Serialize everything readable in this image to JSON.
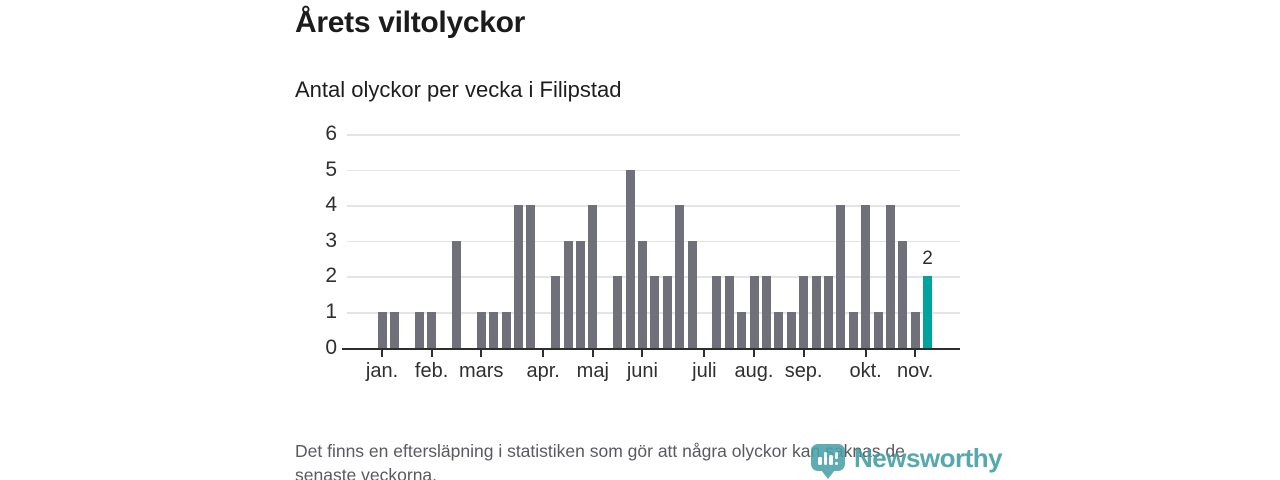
{
  "header": {
    "title": "Årets viltolyckor",
    "subtitle": "Antal olyckor per vecka i Filipstad"
  },
  "chart_data": {
    "type": "bar",
    "title": "Årets viltolyckor",
    "subtitle": "Antal olyckor per vecka i Filipstad",
    "x_unit": "vecka",
    "values": [
      1,
      1,
      0,
      1,
      1,
      0,
      3,
      0,
      1,
      1,
      1,
      4,
      4,
      0,
      2,
      3,
      3,
      4,
      0,
      2,
      5,
      3,
      2,
      2,
      4,
      3,
      0,
      2,
      2,
      1,
      2,
      2,
      1,
      1,
      2,
      2,
      2,
      4,
      1,
      4,
      1,
      4,
      3,
      1,
      2
    ],
    "months": [
      {
        "label": "jan.",
        "slot": 0
      },
      {
        "label": "feb.",
        "slot": 4
      },
      {
        "label": "mars",
        "slot": 8
      },
      {
        "label": "apr.",
        "slot": 13
      },
      {
        "label": "maj",
        "slot": 17
      },
      {
        "label": "juni",
        "slot": 21
      },
      {
        "label": "juli",
        "slot": 26
      },
      {
        "label": "aug.",
        "slot": 30
      },
      {
        "label": "sep.",
        "slot": 34
      },
      {
        "label": "okt.",
        "slot": 39
      },
      {
        "label": "nov.",
        "slot": 43
      }
    ],
    "y_ticks": [
      0,
      1,
      2,
      3,
      4,
      5,
      6
    ],
    "ylim": [
      0,
      6
    ],
    "grid": true,
    "highlight_last": true,
    "highlight_value_label": "2",
    "colors": {
      "bar": "#70707a",
      "highlight": "#00a49c",
      "grid": "#e4e4e4",
      "axis": "#2e2e2e",
      "label": "#2b2b2b"
    }
  },
  "footer": {
    "note_line1": "Det finns en eftersläpning i statistiken som gör att några olyckor kan saknas de",
    "note_line2": "senaste veckorna.",
    "logo_text": "Newsworthy"
  }
}
